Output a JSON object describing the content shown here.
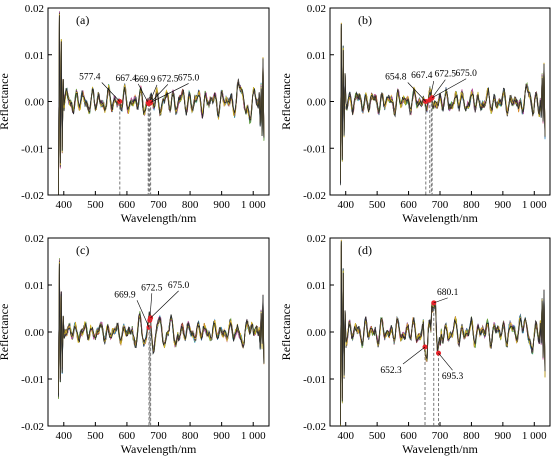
{
  "chart_data": [
    {
      "type": "line",
      "panel_label": "(a)",
      "xlabel": "Wavelength/nm",
      "ylabel": "Reflectance",
      "xlim": [
        350,
        1050
      ],
      "ylim": [
        -0.02,
        0.02
      ],
      "xticks": [
        400,
        500,
        600,
        700,
        800,
        900,
        1000
      ],
      "xtick_labels": [
        "400",
        "500",
        "600",
        "700",
        "800",
        "900",
        "1 000"
      ],
      "yticks": [
        -0.02,
        -0.01,
        0.0,
        0.01,
        0.02
      ],
      "ytick_labels": [
        "-0.02",
        "-0.01",
        "0.00",
        "0.01",
        "0.02"
      ],
      "seed": 11,
      "feature": null,
      "annotations": [
        {
          "label": "577.4",
          "x": 577.4,
          "y": 0.0
        },
        {
          "label": "667.4",
          "x": 667.4,
          "y": -0.0003
        },
        {
          "label": "669.9",
          "x": 669.9,
          "y": -0.0005
        },
        {
          "label": "672.5",
          "x": 672.5,
          "y": -0.0004
        },
        {
          "label": "675.0",
          "x": 675.0,
          "y": -0.0002
        }
      ]
    },
    {
      "type": "line",
      "panel_label": "(b)",
      "xlabel": "Wavelength/nm",
      "ylabel": "Reflectance",
      "xlim": [
        350,
        1050
      ],
      "ylim": [
        -0.02,
        0.02
      ],
      "xticks": [
        400,
        500,
        600,
        700,
        800,
        900,
        1000
      ],
      "xtick_labels": [
        "400",
        "500",
        "600",
        "700",
        "800",
        "900",
        "1 000"
      ],
      "yticks": [
        -0.02,
        -0.01,
        0.0,
        0.01,
        0.02
      ],
      "ytick_labels": [
        "-0.02",
        "-0.01",
        "0.00",
        "0.01",
        "0.02"
      ],
      "seed": 29,
      "feature": null,
      "annotations": [
        {
          "label": "654.8",
          "x": 654.8,
          "y": 0.0
        },
        {
          "label": "667.4",
          "x": 667.4,
          "y": 0.0003
        },
        {
          "label": "672.5",
          "x": 672.5,
          "y": 0.0006
        },
        {
          "label": "675.0",
          "x": 675.0,
          "y": 0.0008
        }
      ]
    },
    {
      "type": "line",
      "panel_label": "(c)",
      "xlabel": "Wavelength/nm",
      "ylabel": "Reflectance",
      "xlim": [
        350,
        1050
      ],
      "ylim": [
        -0.02,
        0.02
      ],
      "xticks": [
        400,
        500,
        600,
        700,
        800,
        900,
        1000
      ],
      "xtick_labels": [
        "400",
        "500",
        "600",
        "700",
        "800",
        "900",
        "1 000"
      ],
      "yticks": [
        -0.02,
        -0.01,
        0.0,
        0.01,
        0.02
      ],
      "ytick_labels": [
        "-0.02",
        "-0.01",
        "0.00",
        "0.01",
        "0.02"
      ],
      "seed": 47,
      "feature": "c",
      "annotations": [
        {
          "label": "669.9",
          "x": 669.9,
          "y": 0.001
        },
        {
          "label": "672.5",
          "x": 672.5,
          "y": 0.0025
        },
        {
          "label": "675.0",
          "x": 675.0,
          "y": 0.003
        }
      ]
    },
    {
      "type": "line",
      "panel_label": "(d)",
      "xlabel": "Wavelength/nm",
      "ylabel": "Reflectance",
      "xlim": [
        350,
        1050
      ],
      "ylim": [
        -0.02,
        0.02
      ],
      "xticks": [
        400,
        500,
        600,
        700,
        800,
        900,
        1000
      ],
      "xtick_labels": [
        "400",
        "500",
        "600",
        "700",
        "800",
        "900",
        "1 000"
      ],
      "yticks": [
        -0.02,
        -0.01,
        0.0,
        0.01,
        0.02
      ],
      "ytick_labels": [
        "-0.02",
        "-0.01",
        "0.00",
        "0.01",
        "0.02"
      ],
      "seed": 63,
      "feature": "d",
      "annotations": [
        {
          "label": "680.1",
          "x": 680.1,
          "y": 0.0062
        },
        {
          "label": "652.3",
          "x": 652.3,
          "y": -0.0032
        },
        {
          "label": "695.3",
          "x": 695.3,
          "y": -0.0045
        }
      ]
    }
  ],
  "colors": {
    "axis": "#000000",
    "marker": "#e8222a",
    "series": [
      "#3a5e8c",
      "#3aa46a",
      "#e08a2a",
      "#8c3a3a",
      "#2e8fc8",
      "#6aa23a",
      "#c04fa0",
      "#444444",
      "#d0b020",
      "#2a2a2a"
    ]
  }
}
